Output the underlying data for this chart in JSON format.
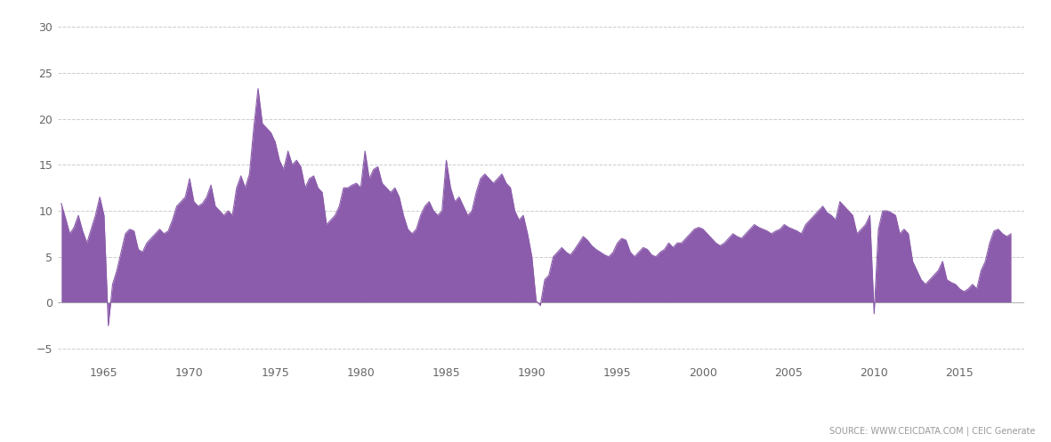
{
  "fill_color": "#8B5CAB",
  "line_color": "#8B5CAB",
  "background_color": "#ffffff",
  "plot_bg_color": "#ffffff",
  "source_text": "SOURCE: WWW.CEICDATA.COM | CEIC Generate",
  "ylabel_ticks": [
    -5,
    0,
    5,
    10,
    15,
    20,
    25,
    30
  ],
  "xlim_start": 1962.3,
  "xlim_end": 2018.8,
  "ylim_min": -6.5,
  "ylim_max": 31.5,
  "xtick_labels": [
    "1965",
    "1970",
    "1975",
    "1980",
    "1985",
    "1990",
    "1995",
    "2000",
    "2005",
    "2010",
    "2015"
  ],
  "xtick_positions": [
    1965,
    1970,
    1975,
    1980,
    1985,
    1990,
    1995,
    2000,
    2005,
    2010,
    2015
  ],
  "data": [
    [
      1962.5,
      10.8
    ],
    [
      1962.75,
      9.2
    ],
    [
      1963.0,
      7.5
    ],
    [
      1963.25,
      8.2
    ],
    [
      1963.5,
      9.5
    ],
    [
      1963.75,
      7.8
    ],
    [
      1964.0,
      6.5
    ],
    [
      1964.25,
      8.0
    ],
    [
      1964.5,
      9.5
    ],
    [
      1964.75,
      11.5
    ],
    [
      1965.0,
      9.5
    ],
    [
      1965.25,
      -2.5
    ],
    [
      1965.5,
      2.0
    ],
    [
      1965.75,
      3.5
    ],
    [
      1966.0,
      5.5
    ],
    [
      1966.25,
      7.5
    ],
    [
      1966.5,
      8.0
    ],
    [
      1966.75,
      7.8
    ],
    [
      1967.0,
      5.8
    ],
    [
      1967.25,
      5.5
    ],
    [
      1967.5,
      6.5
    ],
    [
      1967.75,
      7.0
    ],
    [
      1968.0,
      7.5
    ],
    [
      1968.25,
      8.0
    ],
    [
      1968.5,
      7.5
    ],
    [
      1968.75,
      7.8
    ],
    [
      1969.0,
      9.0
    ],
    [
      1969.25,
      10.5
    ],
    [
      1969.5,
      11.0
    ],
    [
      1969.75,
      11.5
    ],
    [
      1970.0,
      13.5
    ],
    [
      1970.25,
      11.0
    ],
    [
      1970.5,
      10.5
    ],
    [
      1970.75,
      10.8
    ],
    [
      1971.0,
      11.5
    ],
    [
      1971.25,
      12.8
    ],
    [
      1971.5,
      10.5
    ],
    [
      1971.75,
      10.0
    ],
    [
      1972.0,
      9.5
    ],
    [
      1972.25,
      10.0
    ],
    [
      1972.5,
      9.5
    ],
    [
      1972.75,
      12.5
    ],
    [
      1973.0,
      13.8
    ],
    [
      1973.25,
      12.5
    ],
    [
      1973.5,
      14.0
    ],
    [
      1973.75,
      19.0
    ],
    [
      1974.0,
      23.3
    ],
    [
      1974.25,
      19.5
    ],
    [
      1974.5,
      19.0
    ],
    [
      1974.75,
      18.5
    ],
    [
      1975.0,
      17.5
    ],
    [
      1975.25,
      15.5
    ],
    [
      1975.5,
      14.5
    ],
    [
      1975.75,
      16.5
    ],
    [
      1976.0,
      15.0
    ],
    [
      1976.25,
      15.5
    ],
    [
      1976.5,
      14.8
    ],
    [
      1976.75,
      12.5
    ],
    [
      1977.0,
      13.5
    ],
    [
      1977.25,
      13.8
    ],
    [
      1977.5,
      12.5
    ],
    [
      1977.75,
      12.0
    ],
    [
      1978.0,
      8.5
    ],
    [
      1978.25,
      9.0
    ],
    [
      1978.5,
      9.5
    ],
    [
      1978.75,
      10.5
    ],
    [
      1979.0,
      12.5
    ],
    [
      1979.25,
      12.5
    ],
    [
      1979.5,
      12.8
    ],
    [
      1979.75,
      13.0
    ],
    [
      1980.0,
      12.5
    ],
    [
      1980.25,
      16.5
    ],
    [
      1980.5,
      13.5
    ],
    [
      1980.75,
      14.5
    ],
    [
      1981.0,
      14.8
    ],
    [
      1981.25,
      13.0
    ],
    [
      1981.5,
      12.5
    ],
    [
      1981.75,
      12.0
    ],
    [
      1982.0,
      12.5
    ],
    [
      1982.25,
      11.5
    ],
    [
      1982.5,
      9.5
    ],
    [
      1982.75,
      8.0
    ],
    [
      1983.0,
      7.5
    ],
    [
      1983.25,
      8.0
    ],
    [
      1983.5,
      9.5
    ],
    [
      1983.75,
      10.5
    ],
    [
      1984.0,
      11.0
    ],
    [
      1984.25,
      10.0
    ],
    [
      1984.5,
      9.5
    ],
    [
      1984.75,
      10.0
    ],
    [
      1985.0,
      15.5
    ],
    [
      1985.25,
      12.5
    ],
    [
      1985.5,
      11.0
    ],
    [
      1985.75,
      11.5
    ],
    [
      1986.0,
      10.5
    ],
    [
      1986.25,
      9.5
    ],
    [
      1986.5,
      10.0
    ],
    [
      1986.75,
      12.0
    ],
    [
      1987.0,
      13.5
    ],
    [
      1987.25,
      14.0
    ],
    [
      1987.5,
      13.5
    ],
    [
      1987.75,
      13.0
    ],
    [
      1988.0,
      13.5
    ],
    [
      1988.25,
      14.0
    ],
    [
      1988.5,
      13.0
    ],
    [
      1988.75,
      12.5
    ],
    [
      1989.0,
      10.0
    ],
    [
      1989.25,
      9.0
    ],
    [
      1989.5,
      9.5
    ],
    [
      1989.75,
      7.5
    ],
    [
      1990.0,
      5.0
    ],
    [
      1990.25,
      0.2
    ],
    [
      1990.5,
      -0.3
    ],
    [
      1990.75,
      2.5
    ],
    [
      1991.0,
      3.0
    ],
    [
      1991.25,
      5.0
    ],
    [
      1991.5,
      5.5
    ],
    [
      1991.75,
      6.0
    ],
    [
      1992.0,
      5.5
    ],
    [
      1992.25,
      5.2
    ],
    [
      1992.5,
      5.8
    ],
    [
      1992.75,
      6.5
    ],
    [
      1993.0,
      7.2
    ],
    [
      1993.25,
      6.8
    ],
    [
      1993.5,
      6.2
    ],
    [
      1993.75,
      5.8
    ],
    [
      1994.0,
      5.5
    ],
    [
      1994.25,
      5.2
    ],
    [
      1994.5,
      5.0
    ],
    [
      1994.75,
      5.5
    ],
    [
      1995.0,
      6.5
    ],
    [
      1995.25,
      7.0
    ],
    [
      1995.5,
      6.8
    ],
    [
      1995.75,
      5.5
    ],
    [
      1996.0,
      5.0
    ],
    [
      1996.25,
      5.5
    ],
    [
      1996.5,
      6.0
    ],
    [
      1996.75,
      5.8
    ],
    [
      1997.0,
      5.2
    ],
    [
      1997.25,
      5.0
    ],
    [
      1997.5,
      5.5
    ],
    [
      1997.75,
      5.8
    ],
    [
      1998.0,
      6.5
    ],
    [
      1998.25,
      6.0
    ],
    [
      1998.5,
      6.5
    ],
    [
      1998.75,
      6.5
    ],
    [
      1999.0,
      7.0
    ],
    [
      1999.25,
      7.5
    ],
    [
      1999.5,
      8.0
    ],
    [
      1999.75,
      8.2
    ],
    [
      2000.0,
      8.0
    ],
    [
      2000.25,
      7.5
    ],
    [
      2000.5,
      7.0
    ],
    [
      2000.75,
      6.5
    ],
    [
      2001.0,
      6.2
    ],
    [
      2001.25,
      6.5
    ],
    [
      2001.5,
      7.0
    ],
    [
      2001.75,
      7.5
    ],
    [
      2002.0,
      7.2
    ],
    [
      2002.25,
      7.0
    ],
    [
      2002.5,
      7.5
    ],
    [
      2002.75,
      8.0
    ],
    [
      2003.0,
      8.5
    ],
    [
      2003.25,
      8.2
    ],
    [
      2003.5,
      8.0
    ],
    [
      2003.75,
      7.8
    ],
    [
      2004.0,
      7.5
    ],
    [
      2004.25,
      7.8
    ],
    [
      2004.5,
      8.0
    ],
    [
      2004.75,
      8.5
    ],
    [
      2005.0,
      8.2
    ],
    [
      2005.25,
      8.0
    ],
    [
      2005.5,
      7.8
    ],
    [
      2005.75,
      7.5
    ],
    [
      2006.0,
      8.5
    ],
    [
      2006.25,
      9.0
    ],
    [
      2006.5,
      9.5
    ],
    [
      2006.75,
      10.0
    ],
    [
      2007.0,
      10.5
    ],
    [
      2007.25,
      9.8
    ],
    [
      2007.5,
      9.5
    ],
    [
      2007.75,
      9.0
    ],
    [
      2008.0,
      11.0
    ],
    [
      2008.25,
      10.5
    ],
    [
      2008.5,
      10.0
    ],
    [
      2008.75,
      9.5
    ],
    [
      2009.0,
      7.5
    ],
    [
      2009.25,
      8.0
    ],
    [
      2009.5,
      8.5
    ],
    [
      2009.75,
      9.5
    ],
    [
      2010.0,
      -1.2
    ],
    [
      2010.25,
      8.0
    ],
    [
      2010.5,
      10.0
    ],
    [
      2010.75,
      10.0
    ],
    [
      2011.0,
      9.8
    ],
    [
      2011.25,
      9.5
    ],
    [
      2011.5,
      7.5
    ],
    [
      2011.75,
      8.0
    ],
    [
      2012.0,
      7.5
    ],
    [
      2012.25,
      4.5
    ],
    [
      2012.5,
      3.5
    ],
    [
      2012.75,
      2.5
    ],
    [
      2013.0,
      2.0
    ],
    [
      2013.25,
      2.5
    ],
    [
      2013.5,
      3.0
    ],
    [
      2013.75,
      3.5
    ],
    [
      2014.0,
      4.5
    ],
    [
      2014.25,
      2.5
    ],
    [
      2014.5,
      2.2
    ],
    [
      2014.75,
      2.0
    ],
    [
      2015.0,
      1.5
    ],
    [
      2015.25,
      1.2
    ],
    [
      2015.5,
      1.5
    ],
    [
      2015.75,
      2.0
    ],
    [
      2016.0,
      1.5
    ],
    [
      2016.25,
      3.5
    ],
    [
      2016.5,
      4.5
    ],
    [
      2016.75,
      6.5
    ],
    [
      2017.0,
      7.8
    ],
    [
      2017.25,
      8.0
    ],
    [
      2017.5,
      7.5
    ],
    [
      2017.75,
      7.2
    ],
    [
      2018.0,
      7.5
    ]
  ]
}
